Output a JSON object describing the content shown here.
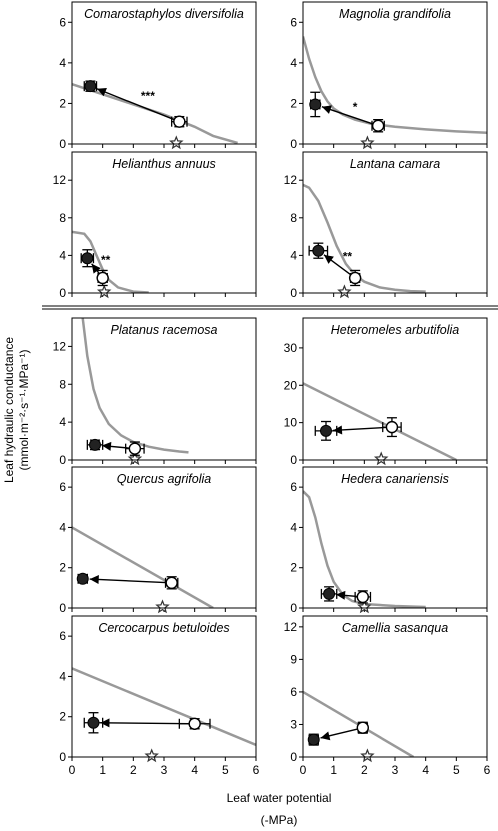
{
  "figure": {
    "ylabel_line1": "Leaf hydraulic conductance",
    "ylabel_line2": "(mmol·m⁻²·s⁻¹·MPa⁻¹)",
    "xlabel_line1": "Leaf water potential",
    "xlabel_line2": "(-MPa)",
    "colors": {
      "curve": "#999999",
      "axis": "#000000",
      "open_marker": "#ffffff",
      "filled_marker": "#222222"
    }
  },
  "chart_data": [
    {
      "type": "scatter",
      "title": "Comarostaphylos diversifolia",
      "xlim": [
        0,
        6
      ],
      "ylim": [
        0,
        7
      ],
      "yticks": [
        0,
        2,
        4,
        6
      ],
      "xticks": [],
      "curve": [
        [
          0,
          2.95
        ],
        [
          1,
          2.45
        ],
        [
          2,
          1.95
        ],
        [
          3,
          1.45
        ],
        [
          4,
          0.85
        ],
        [
          4.6,
          0.4
        ],
        [
          5.4,
          0.05
        ]
      ],
      "filled": {
        "x": 0.6,
        "y": 2.85,
        "xerr": 0.2,
        "yerr": 0.25
      },
      "open": {
        "x": 3.5,
        "y": 1.1,
        "xerr": 0.25,
        "yerr": 0.25
      },
      "star_x": 3.4,
      "annotation": "***"
    },
    {
      "type": "scatter",
      "title": "Magnolia grandifolia",
      "xlim": [
        0,
        6
      ],
      "ylim": [
        0,
        7
      ],
      "yticks": [
        0,
        2,
        4,
        6
      ],
      "xticks": [],
      "curve": [
        [
          0,
          5.3
        ],
        [
          0.2,
          4.2
        ],
        [
          0.4,
          3.3
        ],
        [
          0.6,
          2.6
        ],
        [
          0.8,
          2.1
        ],
        [
          1.0,
          1.75
        ],
        [
          1.3,
          1.45
        ],
        [
          1.7,
          1.2
        ],
        [
          2.2,
          1.0
        ],
        [
          3,
          0.85
        ],
        [
          4,
          0.72
        ],
        [
          5,
          0.62
        ],
        [
          6,
          0.55
        ]
      ],
      "filled": {
        "x": 0.4,
        "y": 1.95,
        "xerr": 0.15,
        "yerr": 0.6
      },
      "open": {
        "x": 2.45,
        "y": 0.9,
        "xerr": 0.2,
        "yerr": 0.3
      },
      "star_x": 2.1,
      "annotation": "*"
    },
    {
      "type": "scatter",
      "title": "Helianthus annuus",
      "xlim": [
        0,
        6
      ],
      "ylim": [
        0,
        15
      ],
      "yticks": [
        0,
        4,
        8,
        12
      ],
      "xticks": [],
      "curve": [
        [
          0,
          6.5
        ],
        [
          0.4,
          6.3
        ],
        [
          0.6,
          5.5
        ],
        [
          0.8,
          4.0
        ],
        [
          1.0,
          2.5
        ],
        [
          1.2,
          1.4
        ],
        [
          1.5,
          0.6
        ],
        [
          2.0,
          0.15
        ],
        [
          2.5,
          0.05
        ]
      ],
      "filled": {
        "x": 0.5,
        "y": 3.7,
        "xerr": 0.2,
        "yerr": 0.9
      },
      "open": {
        "x": 1.0,
        "y": 1.6,
        "xerr": 0.15,
        "yerr": 0.8
      },
      "star_x": 1.05,
      "annotation": "**"
    },
    {
      "type": "scatter",
      "title": "Lantana camara",
      "xlim": [
        0,
        6
      ],
      "ylim": [
        0,
        15
      ],
      "yticks": [
        0,
        4,
        8,
        12
      ],
      "xticks": [],
      "curve": [
        [
          0,
          11.5
        ],
        [
          0.2,
          11.2
        ],
        [
          0.5,
          9.8
        ],
        [
          0.8,
          7.5
        ],
        [
          1.1,
          5.0
        ],
        [
          1.4,
          3.1
        ],
        [
          1.7,
          1.9
        ],
        [
          2.0,
          1.2
        ],
        [
          2.5,
          0.6
        ],
        [
          3.0,
          0.35
        ],
        [
          3.5,
          0.2
        ],
        [
          4.0,
          0.15
        ]
      ],
      "filled": {
        "x": 0.5,
        "y": 4.5,
        "xerr": 0.3,
        "yerr": 0.8
      },
      "open": {
        "x": 1.7,
        "y": 1.6,
        "xerr": 0.15,
        "yerr": 0.8
      },
      "star_x": 1.35,
      "annotation": "**"
    },
    {
      "type": "scatter",
      "title": "Platanus racemosa",
      "xlim": [
        0,
        6
      ],
      "ylim": [
        0,
        15
      ],
      "yticks": [
        0,
        4,
        8,
        12
      ],
      "xticks": [],
      "curve": [
        [
          0.35,
          15
        ],
        [
          0.5,
          11
        ],
        [
          0.7,
          7.5
        ],
        [
          0.9,
          5.5
        ],
        [
          1.2,
          3.8
        ],
        [
          1.6,
          2.6
        ],
        [
          2.0,
          1.9
        ],
        [
          2.5,
          1.4
        ],
        [
          3.0,
          1.1
        ],
        [
          3.5,
          0.9
        ],
        [
          3.8,
          0.8
        ]
      ],
      "filled": {
        "x": 0.75,
        "y": 1.6,
        "xerr": 0.25,
        "yerr": 0.5
      },
      "open": {
        "x": 2.05,
        "y": 1.2,
        "xerr": 0.3,
        "yerr": 0.7
      },
      "star_x": 2.05,
      "annotation": ""
    },
    {
      "type": "scatter",
      "title": "Heteromeles arbutifolia",
      "xlim": [
        0,
        6
      ],
      "ylim": [
        0,
        38
      ],
      "yticks": [
        0,
        10,
        20,
        30
      ],
      "xticks": [],
      "curve": [
        [
          0,
          20.5
        ],
        [
          5,
          0
        ]
      ],
      "filled": {
        "x": 0.75,
        "y": 7.8,
        "xerr": 0.35,
        "yerr": 2.5
      },
      "open": {
        "x": 2.9,
        "y": 8.8,
        "xerr": 0.3,
        "yerr": 2.5
      },
      "star_x": 2.55,
      "annotation": ""
    },
    {
      "type": "scatter",
      "title": "Quercus agrifolia",
      "xlim": [
        0,
        6
      ],
      "ylim": [
        0,
        7
      ],
      "yticks": [
        0,
        2,
        4,
        6
      ],
      "xticks": [],
      "curve": [
        [
          0,
          4.0
        ],
        [
          4.6,
          0
        ]
      ],
      "filled": {
        "x": 0.35,
        "y": 1.45,
        "xerr": 0.15,
        "yerr": 0.2
      },
      "open": {
        "x": 3.25,
        "y": 1.25,
        "xerr": 0.2,
        "yerr": 0.3
      },
      "star_x": 2.95,
      "annotation": ""
    },
    {
      "type": "scatter",
      "title": "Hedera canariensis",
      "xlim": [
        0,
        6
      ],
      "ylim": [
        0,
        7
      ],
      "yticks": [
        0,
        2,
        4,
        6
      ],
      "xticks": [],
      "curve": [
        [
          0,
          5.8
        ],
        [
          0.2,
          5.5
        ],
        [
          0.4,
          4.5
        ],
        [
          0.6,
          3.2
        ],
        [
          0.8,
          2.1
        ],
        [
          1.0,
          1.3
        ],
        [
          1.3,
          0.65
        ],
        [
          1.6,
          0.35
        ],
        [
          2.0,
          0.2
        ],
        [
          3.0,
          0.1
        ],
        [
          4.0,
          0.05
        ]
      ],
      "filled": {
        "x": 0.85,
        "y": 0.7,
        "xerr": 0.25,
        "yerr": 0.35
      },
      "open": {
        "x": 1.95,
        "y": 0.55,
        "xerr": 0.25,
        "yerr": 0.3
      },
      "star_x": 2.0,
      "annotation": ""
    },
    {
      "type": "scatter",
      "title": "Cercocarpus betuloides",
      "xlim": [
        0,
        6
      ],
      "ylim": [
        0,
        7
      ],
      "yticks": [
        0,
        2,
        4,
        6
      ],
      "xticks": [
        0,
        1,
        2,
        3,
        4,
        5,
        6
      ],
      "curve": [
        [
          0,
          4.4
        ],
        [
          6,
          0.6
        ]
      ],
      "filled": {
        "x": 0.7,
        "y": 1.7,
        "xerr": 0.3,
        "yerr": 0.5
      },
      "open": {
        "x": 4.0,
        "y": 1.65,
        "xerr": 0.5,
        "yerr": 0.25
      },
      "star_x": 2.6,
      "annotation": ""
    },
    {
      "type": "scatter",
      "title": "Camellia sasanqua",
      "xlim": [
        0,
        6
      ],
      "ylim": [
        0,
        13
      ],
      "yticks": [
        0,
        3,
        6,
        9,
        12
      ],
      "xticks": [
        0,
        1,
        2,
        3,
        4,
        5,
        6
      ],
      "curve": [
        [
          0,
          6.0
        ],
        [
          3.6,
          0
        ]
      ],
      "filled": {
        "x": 0.35,
        "y": 1.6,
        "xerr": 0.15,
        "yerr": 0.5
      },
      "open": {
        "x": 1.95,
        "y": 2.7,
        "xerr": 0.15,
        "yerr": 0.5
      },
      "star_x": 2.1,
      "annotation": ""
    }
  ]
}
